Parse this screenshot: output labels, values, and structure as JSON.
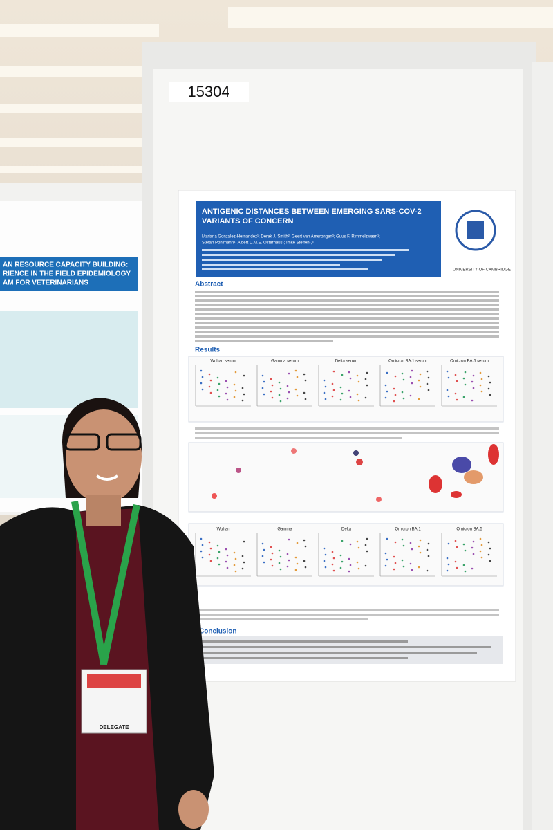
{
  "board_number": "15304",
  "poster": {
    "title_lines": [
      "ANTIGENIC DISTANCES BETWEEN EMERGING SARS-COV-2",
      "VARIANTS OF CONCERN"
    ],
    "authors_lines": [
      "Mariana Gonzalez-Hernandez¹; Derek J. Smith²; Geert van Amerongen³; Guus F. Rimmelzwaan¹;",
      "Stefan Pöhlmann⁴; Albert D.M.E. Osterhaus¹; Imke Steffen¹,⁵"
    ],
    "sections": [
      "Abstract",
      "Results",
      "Conclusion"
    ],
    "serum_panels": [
      "Wuhan serum",
      "Gamma serum",
      "Delta serum",
      "Omicron BA.1 serum",
      "Omicron BA.5 serum"
    ],
    "sample_panels": [
      "Wuhan",
      "Gamma",
      "Delta",
      "Omicron BA.1",
      "Omicron BA.5"
    ],
    "logo": "UNIVERSITY OF CAMBRIDGE"
  },
  "left_poster": {
    "title_lines": [
      "AN RESOURCE CAPACITY BUILDING:",
      "RIENCE IN THE FIELD EPIDEMIOLOGY",
      "AM FOR VETERINARIANS"
    ]
  },
  "badge": "DELEGATE"
}
